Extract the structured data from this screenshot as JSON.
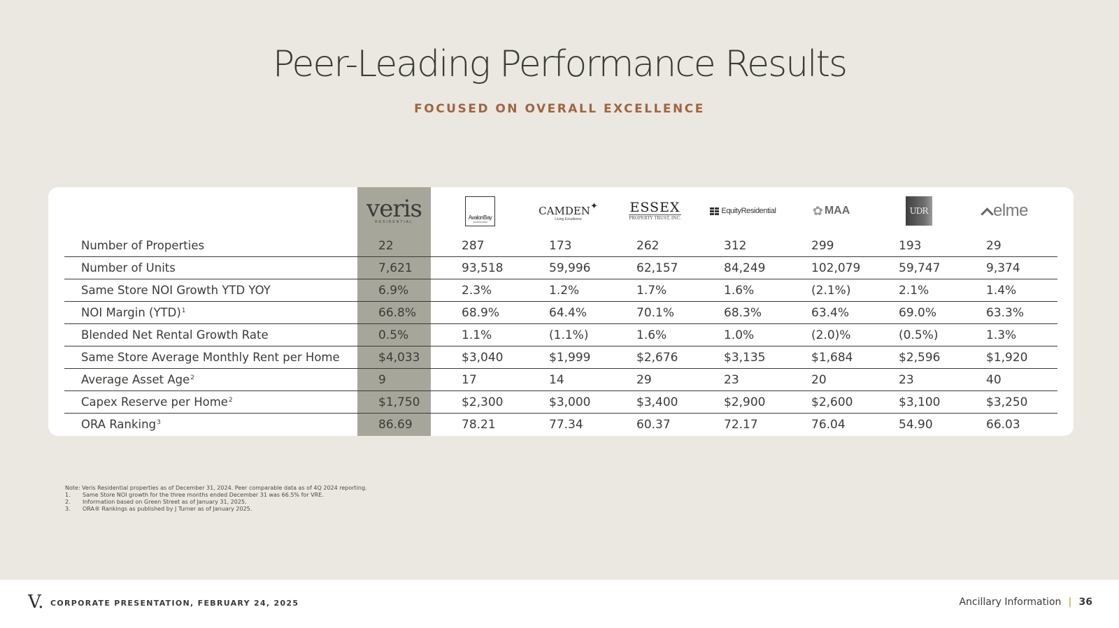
{
  "slide": {
    "title": "Peer-Leading Performance Results",
    "subtitle": "FOCUSED ON OVERALL EXCELLENCE"
  },
  "logos": {
    "veris": {
      "text": "veris",
      "subtext": "RESIDENTIAL"
    },
    "avalonbay": {
      "text": "AvalonBay",
      "subtext": "COMMUNITIES"
    },
    "camden": {
      "text": "CAMDEN",
      "subtext": "Living Excellence"
    },
    "essex": {
      "text": "ESSEX",
      "subtext": "PROPERTY TRUST, INC."
    },
    "equity": {
      "text": "EquityResidential"
    },
    "maa": {
      "text": "MAA"
    },
    "udr": {
      "text": "UDR"
    },
    "elme": {
      "text": "elme"
    }
  },
  "table": {
    "rows": [
      {
        "label": "Number of Properties",
        "sup": "",
        "values": [
          "22",
          "287",
          "173",
          "262",
          "312",
          "299",
          "193",
          "29"
        ]
      },
      {
        "label": "Number of Units",
        "sup": "",
        "values": [
          "7,621",
          "93,518",
          "59,996",
          "62,157",
          "84,249",
          "102,079",
          "59,747",
          "9,374"
        ]
      },
      {
        "label": "Same Store NOI Growth YTD YOY",
        "sup": "",
        "values": [
          "6.9%",
          "2.3%",
          "1.2%",
          "1.7%",
          "1.6%",
          "(2.1%)",
          "2.1%",
          "1.4%"
        ]
      },
      {
        "label": "NOI Margin (YTD)",
        "sup": "1",
        "values": [
          "66.8%",
          "68.9%",
          "64.4%",
          "70.1%",
          "68.3%",
          "63.4%",
          "69.0%",
          "63.3%"
        ]
      },
      {
        "label": "Blended Net Rental Growth Rate",
        "sup": "",
        "values": [
          "0.5%",
          "1.1%",
          "(1.1%)",
          "1.6%",
          "1.0%",
          "(2.0)%",
          "(0.5%)",
          "1.3%"
        ]
      },
      {
        "label": "Same Store Average Monthly Rent per Home",
        "sup": "",
        "values": [
          "$4,033",
          "$3,040",
          "$1,999",
          "$2,676",
          "$3,135",
          "$1,684",
          "$2,596",
          "$1,920"
        ]
      },
      {
        "label": "Average Asset Age",
        "sup": "2",
        "values": [
          "9",
          "17",
          "14",
          "29",
          "23",
          "20",
          "23",
          "40"
        ]
      },
      {
        "label": "Capex Reserve per Home",
        "sup": "2",
        "values": [
          "$1,750",
          "$2,300",
          "$3,000",
          "$3,400",
          "$2,900",
          "$2,600",
          "$3,100",
          "$3,250"
        ]
      },
      {
        "label": "ORA Ranking",
        "sup": "3",
        "values": [
          "86.69",
          "78.21",
          "77.34",
          "60.37",
          "72.17",
          "76.04",
          "54.90",
          "66.03"
        ]
      }
    ]
  },
  "notes": {
    "intro": "Note: Veris Residential properties as of December 31, 2024. Peer comparable data as of 4Q 2024 reporting.",
    "items": [
      {
        "num": "1.",
        "text": "Same Store NOI growth for the three months ended December 31 was 66.5% for VRE."
      },
      {
        "num": "2.",
        "text": "Information based on Green Street as of January 31, 2025."
      },
      {
        "num": "3.",
        "text": "ORA® Rankings as published by J Turner as of  January 2025."
      }
    ]
  },
  "footer": {
    "logo": "V.",
    "left": "CORPORATE PRESENTATION, FEBRUARY 24, 2025",
    "section": "Ancillary Information",
    "separator": "|",
    "page": "36"
  }
}
